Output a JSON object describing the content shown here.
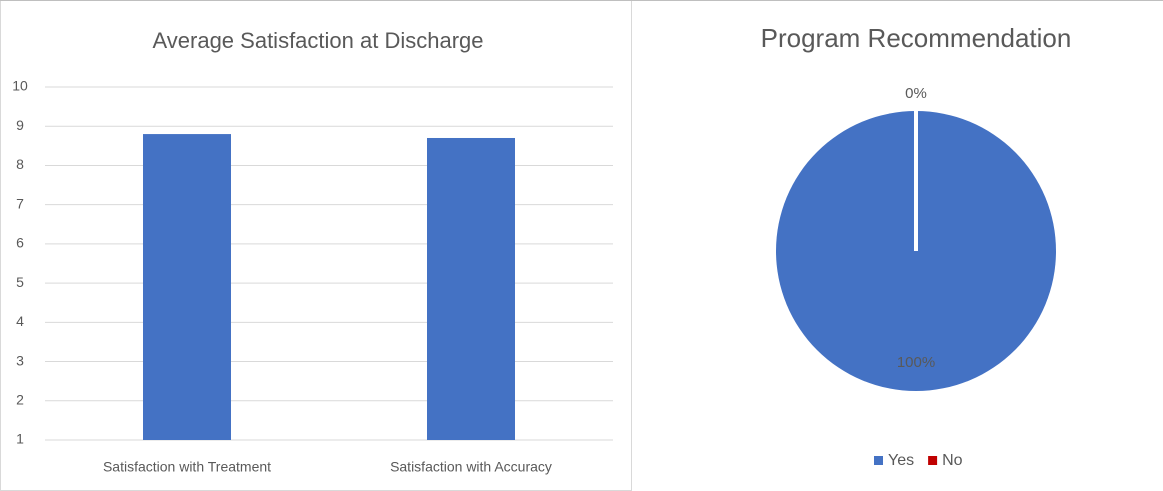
{
  "chart_data": [
    {
      "type": "bar",
      "title": "Average Satisfaction at Discharge",
      "categories": [
        "Satisfaction with Treatment",
        "Satisfaction with Accuracy"
      ],
      "values": [
        8.8,
        8.7
      ],
      "color": "#4472c4",
      "ylim": [
        1,
        10
      ],
      "yticks": [
        1,
        2,
        3,
        4,
        5,
        6,
        7,
        8,
        9,
        10
      ],
      "grid": true
    },
    {
      "type": "pie",
      "title": "Program Recommendation",
      "categories": [
        "Yes",
        "No"
      ],
      "values": [
        100,
        0
      ],
      "value_labels": [
        "100%",
        "0%"
      ],
      "colors": [
        "#4472c4",
        "#c00000"
      ],
      "legend": "bottom"
    }
  ]
}
